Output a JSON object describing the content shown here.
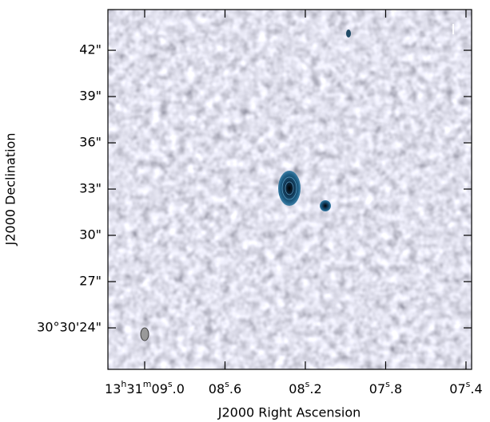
{
  "chart_data": {
    "type": "image",
    "panel_label": "I",
    "xlabel": "J2000 Right Ascension",
    "ylabel": "J2000 Declination",
    "xlim": [
      9.183,
      7.372
    ],
    "ylim": [
      21.31,
      44.64
    ],
    "xticks": [
      {
        "value": 9.0,
        "label": "13h31m09s.0"
      },
      {
        "value": 8.6,
        "label": "08s.6"
      },
      {
        "value": 8.2,
        "label": "08s.2"
      },
      {
        "value": 7.8,
        "label": "07s.8"
      },
      {
        "value": 7.4,
        "label": "07s.4"
      }
    ],
    "yticks": [
      {
        "value": 24,
        "label": "30°30'24\""
      },
      {
        "value": 27,
        "label": "27\""
      },
      {
        "value": 30,
        "label": "30\""
      },
      {
        "value": 33,
        "label": "33\""
      },
      {
        "value": 36,
        "label": "36\""
      },
      {
        "value": 39,
        "label": "39\""
      },
      {
        "value": 42,
        "label": "42\""
      }
    ]
  }
}
